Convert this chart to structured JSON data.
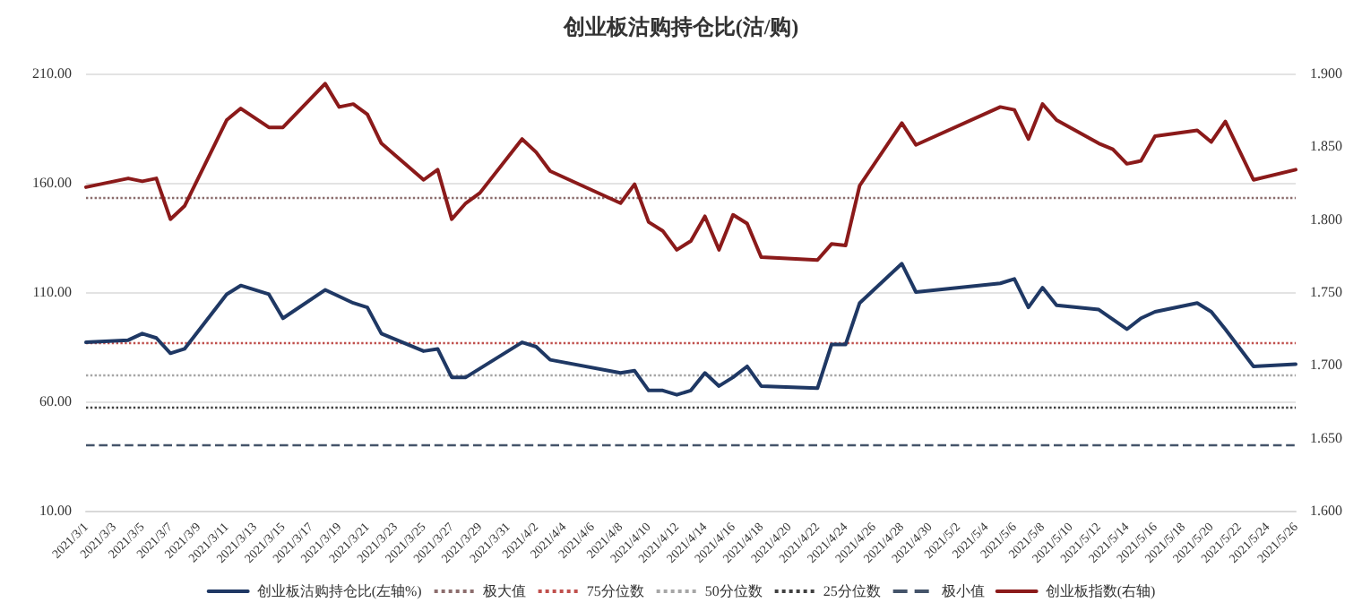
{
  "chart_data": {
    "type": "line",
    "title": "创业板沽购持仓比(沽/购)",
    "xlim": [
      "2021-03-01",
      "2021-05-26"
    ],
    "xticks": [
      {
        "value": "2021-03-01",
        "label": "2021/3/1"
      },
      {
        "value": "2021-03-03",
        "label": "2021/3/3"
      },
      {
        "value": "2021-03-05",
        "label": "2021/3/5"
      },
      {
        "value": "2021-03-07",
        "label": "2021/3/7"
      },
      {
        "value": "2021-03-09",
        "label": "2021/3/9"
      },
      {
        "value": "2021-03-11",
        "label": "2021/3/11"
      },
      {
        "value": "2021-03-13",
        "label": "2021/3/13"
      },
      {
        "value": "2021-03-15",
        "label": "2021/3/15"
      },
      {
        "value": "2021-03-17",
        "label": "2021/3/17"
      },
      {
        "value": "2021-03-19",
        "label": "2021/3/19"
      },
      {
        "value": "2021-03-21",
        "label": "2021/3/21"
      },
      {
        "value": "2021-03-23",
        "label": "2021/3/23"
      },
      {
        "value": "2021-03-25",
        "label": "2021/3/25"
      },
      {
        "value": "2021-03-27",
        "label": "2021/3/27"
      },
      {
        "value": "2021-03-29",
        "label": "2021/3/29"
      },
      {
        "value": "2021-03-31",
        "label": "2021/3/31"
      },
      {
        "value": "2021-04-02",
        "label": "2021/4/2"
      },
      {
        "value": "2021-04-04",
        "label": "2021/4/4"
      },
      {
        "value": "2021-04-06",
        "label": "2021/4/6"
      },
      {
        "value": "2021-04-08",
        "label": "2021/4/8"
      },
      {
        "value": "2021-04-10",
        "label": "2021/4/10"
      },
      {
        "value": "2021-04-12",
        "label": "2021/4/12"
      },
      {
        "value": "2021-04-14",
        "label": "2021/4/14"
      },
      {
        "value": "2021-04-16",
        "label": "2021/4/16"
      },
      {
        "value": "2021-04-18",
        "label": "2021/4/18"
      },
      {
        "value": "2021-04-20",
        "label": "2021/4/20"
      },
      {
        "value": "2021-04-22",
        "label": "2021/4/22"
      },
      {
        "value": "2021-04-24",
        "label": "2021/4/24"
      },
      {
        "value": "2021-04-26",
        "label": "2021/4/26"
      },
      {
        "value": "2021-04-28",
        "label": "2021/4/28"
      },
      {
        "value": "2021-04-30",
        "label": "2021/4/30"
      },
      {
        "value": "2021-05-02",
        "label": "2021/5/2"
      },
      {
        "value": "2021-05-04",
        "label": "2021/5/4"
      },
      {
        "value": "2021-05-06",
        "label": "2021/5/6"
      },
      {
        "value": "2021-05-08",
        "label": "2021/5/8"
      },
      {
        "value": "2021-05-10",
        "label": "2021/5/10"
      },
      {
        "value": "2021-05-12",
        "label": "2021/5/12"
      },
      {
        "value": "2021-05-14",
        "label": "2021/5/14"
      },
      {
        "value": "2021-05-16",
        "label": "2021/5/16"
      },
      {
        "value": "2021-05-18",
        "label": "2021/5/18"
      },
      {
        "value": "2021-05-20",
        "label": "2021/5/20"
      },
      {
        "value": "2021-05-22",
        "label": "2021/5/22"
      },
      {
        "value": "2021-05-24",
        "label": "2021/5/24"
      },
      {
        "value": "2021-05-26",
        "label": "2021/5/26"
      }
    ],
    "ylim": [
      10,
      210
    ],
    "yticks": [
      {
        "value": 10,
        "label": "10.00"
      },
      {
        "value": 60,
        "label": "60.00"
      },
      {
        "value": 110,
        "label": "110.00"
      },
      {
        "value": 160,
        "label": "160.00"
      },
      {
        "value": 210,
        "label": "210.00"
      }
    ],
    "y2lim": [
      1.6,
      1.9
    ],
    "y2ticks": [
      {
        "value": 1.6,
        "label": "1.600"
      },
      {
        "value": 1.65,
        "label": "1.650"
      },
      {
        "value": 1.7,
        "label": "1.700"
      },
      {
        "value": 1.75,
        "label": "1.750"
      },
      {
        "value": 1.8,
        "label": "1.800"
      },
      {
        "value": 1.85,
        "label": "1.850"
      },
      {
        "value": 1.9,
        "label": "1.900"
      }
    ],
    "grid": "y",
    "legend": "bottom",
    "marker": "none",
    "line_style": "solid",
    "series": [
      {
        "name": "创业板沽购持仓比(左轴%)",
        "color": "#1f3864",
        "x": [
          "2021-03-01",
          "2021-03-04",
          "2021-03-05",
          "2021-03-06",
          "2021-03-07",
          "2021-03-08",
          "2021-03-11",
          "2021-03-12",
          "2021-03-14",
          "2021-03-15",
          "2021-03-18",
          "2021-03-20",
          "2021-03-21",
          "2021-03-22",
          "2021-03-25",
          "2021-03-26",
          "2021-03-27",
          "2021-03-28",
          "2021-04-01",
          "2021-04-02",
          "2021-04-03",
          "2021-04-08",
          "2021-04-09",
          "2021-04-10",
          "2021-04-11",
          "2021-04-12",
          "2021-04-13",
          "2021-04-14",
          "2021-04-15",
          "2021-04-16",
          "2021-04-17",
          "2021-04-18",
          "2021-04-22",
          "2021-04-23",
          "2021-04-24",
          "2021-04-25",
          "2021-04-28",
          "2021-04-29",
          "2021-05-05",
          "2021-05-06",
          "2021-05-07",
          "2021-05-08",
          "2021-05-09",
          "2021-05-12",
          "2021-05-14",
          "2021-05-15",
          "2021-05-16",
          "2021-05-19",
          "2021-05-20",
          "2021-05-21",
          "2021-05-23",
          "2021-05-26"
        ],
        "values": [
          87,
          88,
          91,
          89,
          82,
          84,
          109,
          113,
          109,
          98,
          111,
          105,
          103,
          91,
          83,
          84,
          71,
          71,
          87,
          85,
          79,
          73,
          74,
          65,
          65,
          63,
          65,
          73,
          67,
          71,
          76,
          67,
          66,
          86,
          86,
          105,
          123,
          110,
          114,
          116,
          103,
          112,
          104,
          102,
          93,
          98,
          101,
          105,
          101,
          93,
          76,
          77
        ]
      },
      {
        "name": "创业板指数(右轴)",
        "color": "#8b1a1a",
        "axis": "y2",
        "x": [
          "2021-03-01",
          "2021-03-04",
          "2021-03-05",
          "2021-03-06",
          "2021-03-07",
          "2021-03-08",
          "2021-03-11",
          "2021-03-12",
          "2021-03-14",
          "2021-03-15",
          "2021-03-18",
          "2021-03-19",
          "2021-03-20",
          "2021-03-21",
          "2021-03-22",
          "2021-03-25",
          "2021-03-26",
          "2021-03-27",
          "2021-03-28",
          "2021-03-29",
          "2021-04-01",
          "2021-04-02",
          "2021-04-03",
          "2021-04-08",
          "2021-04-09",
          "2021-04-10",
          "2021-04-11",
          "2021-04-12",
          "2021-04-13",
          "2021-04-14",
          "2021-04-15",
          "2021-04-16",
          "2021-04-17",
          "2021-04-18",
          "2021-04-22",
          "2021-04-23",
          "2021-04-24",
          "2021-04-25",
          "2021-04-28",
          "2021-04-29",
          "2021-05-05",
          "2021-05-06",
          "2021-05-07",
          "2021-05-08",
          "2021-05-09",
          "2021-05-12",
          "2021-05-13",
          "2021-05-14",
          "2021-05-15",
          "2021-05-16",
          "2021-05-19",
          "2021-05-20",
          "2021-05-21",
          "2021-05-23",
          "2021-05-26"
        ],
        "values": [
          1.822,
          1.828,
          1.826,
          1.828,
          1.8,
          1.809,
          1.868,
          1.876,
          1.863,
          1.863,
          1.893,
          1.877,
          1.879,
          1.872,
          1.852,
          1.827,
          1.834,
          1.8,
          1.811,
          1.818,
          1.855,
          1.846,
          1.833,
          1.811,
          1.824,
          1.798,
          1.792,
          1.779,
          1.785,
          1.802,
          1.779,
          1.803,
          1.797,
          1.774,
          1.772,
          1.783,
          1.782,
          1.823,
          1.866,
          1.851,
          1.877,
          1.875,
          1.855,
          1.879,
          1.868,
          1.852,
          1.848,
          1.838,
          1.84,
          1.857,
          1.861,
          1.853,
          1.867,
          1.827,
          1.834
        ]
      }
    ],
    "ref_lines": [
      {
        "axis": "y",
        "value": 153,
        "label": "极大值",
        "color": "#8c6d6d",
        "line_style": "dotted"
      },
      {
        "axis": "y",
        "value": 87,
        "label": "75分位数",
        "color": "#c0504d",
        "line_style": "dotted"
      },
      {
        "axis": "y",
        "value": 72,
        "label": "50分位数",
        "color": "#a6a6a6",
        "line_style": "dotted"
      },
      {
        "axis": "y",
        "value": 57,
        "label": "25分位数",
        "color": "#404040",
        "line_style": "dotted"
      },
      {
        "axis": "y",
        "value": 40,
        "label": "极小值",
        "color": "#44546a",
        "line_style": "dashed"
      }
    ]
  }
}
